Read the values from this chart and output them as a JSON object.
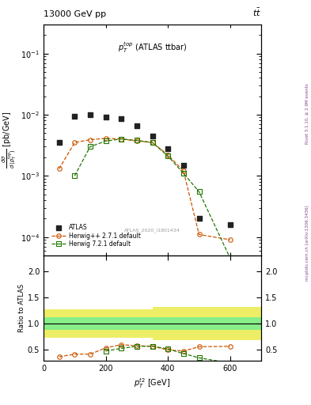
{
  "title_top": "13000 GeV pp",
  "title_right": "t$\\bar{t}$",
  "panel_title": "$p_T^{top}$ (ATLAS ttbar)",
  "watermark": "ATLAS_2020_I1801434",
  "rivet_label": "Rivet 3.1.10, ≥ 2.9M events",
  "mcplots_label": "mcplots.cern.ch [arXiv:1306.3436]",
  "atlas_x": [
    50,
    100,
    150,
    200,
    250,
    300,
    350,
    400,
    450,
    500,
    600
  ],
  "atlas_y": [
    0.0035,
    0.0095,
    0.01,
    0.0092,
    0.0085,
    0.0065,
    0.0045,
    0.0028,
    0.0015,
    0.0002,
    0.00016
  ],
  "hw_x": [
    50,
    100,
    150,
    200,
    250,
    300,
    350,
    400,
    450,
    500,
    600
  ],
  "hw_y": [
    0.0013,
    0.0035,
    0.0039,
    0.0041,
    0.004,
    0.0037,
    0.0035,
    0.0022,
    0.0012,
    0.00011,
    9e-05
  ],
  "hw7_x": [
    100,
    150,
    200,
    250,
    300,
    350,
    400,
    450,
    500,
    600
  ],
  "hw7_y": [
    0.001,
    0.003,
    0.0037,
    0.004,
    0.0038,
    0.0035,
    0.0021,
    0.0011,
    0.00055,
    4.5e-05
  ],
  "ratio_hw_x": [
    50,
    100,
    150,
    200,
    250,
    300,
    350,
    400,
    450,
    500,
    600
  ],
  "ratio_hw_y": [
    0.37,
    0.42,
    0.42,
    0.54,
    0.6,
    0.58,
    0.57,
    0.5,
    0.48,
    0.56,
    0.57
  ],
  "ratio_hw7_x": [
    200,
    250,
    300,
    350,
    400,
    450,
    500,
    600
  ],
  "ratio_hw7_y": [
    0.48,
    0.53,
    0.57,
    0.57,
    0.52,
    0.43,
    0.35,
    0.25
  ],
  "atlas_color": "#222222",
  "hw_color": "#cc5500",
  "hw7_color": "#227700",
  "green_band": "#88ee88",
  "yellow_band": "#eeee66",
  "xlabel": "$p_T^{t2}$ [GeV]",
  "ylabel": "$\\frac{d\\sigma}{d\\,(p_T^{top})}$ [pb/GeV]",
  "ylabel_ratio": "Ratio to ATLAS",
  "xlim": [
    0,
    700
  ],
  "ylim_main": [
    5e-05,
    0.3
  ],
  "ylim_ratio": [
    0.3,
    2.3
  ],
  "yticks_ratio": [
    0.5,
    1.0,
    1.5,
    2.0
  ]
}
